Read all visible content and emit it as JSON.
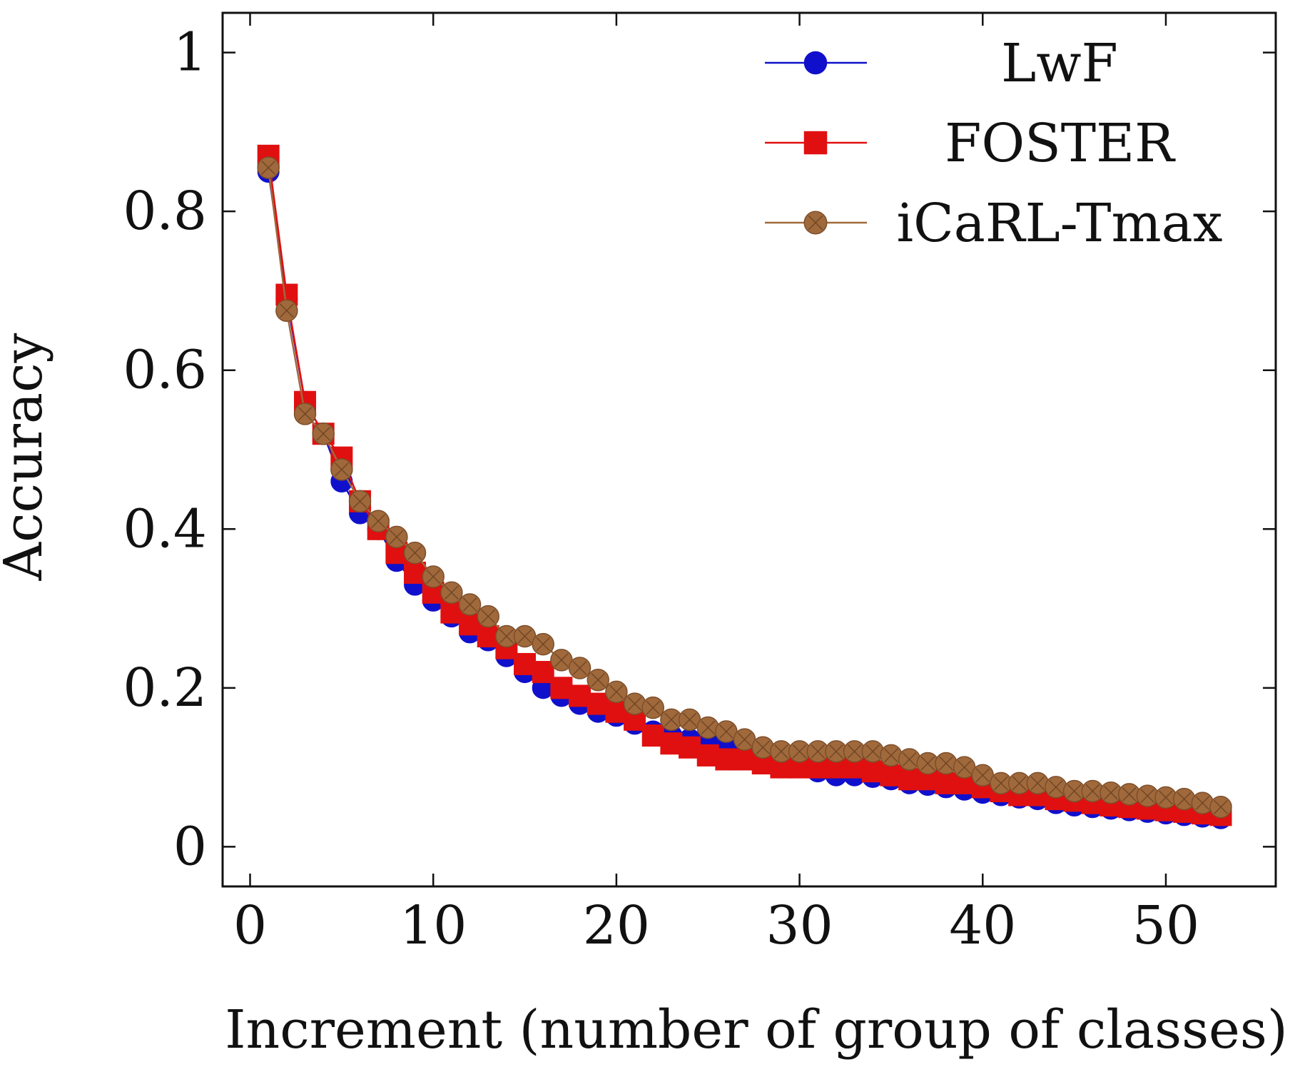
{
  "chart_data": {
    "type": "line",
    "title": "",
    "xlabel": "Increment (number of group of classes)",
    "ylabel": "Accuracy",
    "xlim": [
      -1.5,
      56
    ],
    "ylim": [
      -0.05,
      1.05
    ],
    "xticks": [
      0,
      10,
      20,
      30,
      40,
      50
    ],
    "xtick_labels": [
      "0",
      "10",
      "20",
      "30",
      "40",
      "50"
    ],
    "yticks": [
      0,
      0.2,
      0.4,
      0.6,
      0.8,
      1
    ],
    "ytick_labels": [
      "0",
      "0.2",
      "0.4",
      "0.6",
      "0.8",
      "1"
    ],
    "grid": false,
    "legend_position": "top-right",
    "x": [
      1,
      2,
      3,
      4,
      5,
      6,
      7,
      8,
      9,
      10,
      11,
      12,
      13,
      14,
      15,
      16,
      17,
      18,
      19,
      20,
      21,
      22,
      23,
      24,
      25,
      26,
      27,
      28,
      29,
      30,
      31,
      32,
      33,
      34,
      35,
      36,
      37,
      38,
      39,
      40,
      41,
      42,
      43,
      44,
      45,
      46,
      47,
      48,
      49,
      50,
      51,
      52,
      53
    ],
    "series": [
      {
        "name": "LwF",
        "color": "#1010cc",
        "marker": "circle",
        "values": [
          0.85,
          0.69,
          0.56,
          0.52,
          0.46,
          0.42,
          0.4,
          0.36,
          0.33,
          0.31,
          0.29,
          0.27,
          0.26,
          0.24,
          0.22,
          0.2,
          0.19,
          0.18,
          0.17,
          0.165,
          0.155,
          0.145,
          0.14,
          0.135,
          0.13,
          0.125,
          0.115,
          0.11,
          0.1,
          0.1,
          0.095,
          0.09,
          0.09,
          0.088,
          0.085,
          0.08,
          0.078,
          0.075,
          0.072,
          0.068,
          0.065,
          0.062,
          0.06,
          0.055,
          0.052,
          0.05,
          0.048,
          0.046,
          0.044,
          0.042,
          0.04,
          0.038,
          0.036
        ]
      },
      {
        "name": "FOSTER",
        "color": "#e01010",
        "marker": "square",
        "values": [
          0.87,
          0.695,
          0.56,
          0.52,
          0.49,
          0.435,
          0.4,
          0.37,
          0.345,
          0.32,
          0.295,
          0.28,
          0.265,
          0.25,
          0.23,
          0.22,
          0.2,
          0.19,
          0.18,
          0.17,
          0.16,
          0.14,
          0.13,
          0.125,
          0.115,
          0.11,
          0.11,
          0.105,
          0.1,
          0.1,
          0.1,
          0.1,
          0.1,
          0.095,
          0.09,
          0.085,
          0.085,
          0.08,
          0.08,
          0.075,
          0.07,
          0.065,
          0.065,
          0.06,
          0.058,
          0.055,
          0.052,
          0.05,
          0.048,
          0.046,
          0.044,
          0.042,
          0.04
        ]
      },
      {
        "name": "iCaRL-Tmax",
        "color": "#a0693c",
        "marker": "circle-x",
        "values": [
          0.855,
          0.675,
          0.545,
          0.52,
          0.475,
          0.435,
          0.41,
          0.39,
          0.37,
          0.34,
          0.32,
          0.305,
          0.29,
          0.265,
          0.265,
          0.255,
          0.235,
          0.225,
          0.21,
          0.195,
          0.18,
          0.175,
          0.16,
          0.16,
          0.15,
          0.145,
          0.135,
          0.125,
          0.12,
          0.12,
          0.12,
          0.12,
          0.12,
          0.12,
          0.115,
          0.11,
          0.105,
          0.105,
          0.1,
          0.09,
          0.08,
          0.08,
          0.08,
          0.075,
          0.07,
          0.07,
          0.068,
          0.066,
          0.064,
          0.062,
          0.06,
          0.055,
          0.05
        ]
      }
    ]
  }
}
